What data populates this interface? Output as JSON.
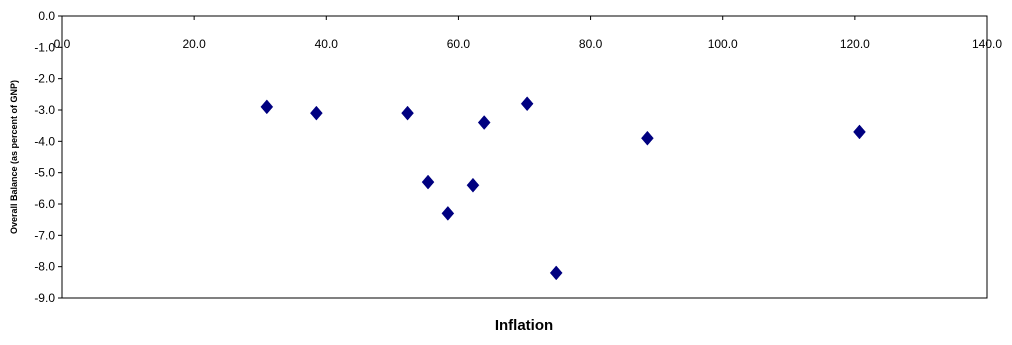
{
  "chart_data": {
    "type": "scatter",
    "title": "",
    "xlabel": "Inflation",
    "ylabel": "Overall Balance (as percent of GNP)",
    "xlim": [
      0,
      140
    ],
    "ylim": [
      -9,
      0
    ],
    "x_ticks": [
      "0.0",
      "20.0",
      "40.0",
      "60.0",
      "80.0",
      "100.0",
      "120.0",
      "140.0"
    ],
    "y_ticks": [
      "0.0",
      "-1.0",
      "-2.0",
      "-3.0",
      "-4.0",
      "-5.0",
      "-6.0",
      "-7.0",
      "-8.0",
      "-9.0"
    ],
    "x_axis_position": "top",
    "grid": false,
    "legend": "none",
    "marker": "diamond",
    "marker_color": "#000080",
    "series": [
      {
        "points": [
          {
            "x": 31.0,
            "y": -2.9
          },
          {
            "x": 38.5,
            "y": -3.1
          },
          {
            "x": 52.3,
            "y": -3.1
          },
          {
            "x": 55.4,
            "y": -5.3
          },
          {
            "x": 58.4,
            "y": -6.3
          },
          {
            "x": 62.2,
            "y": -5.4
          },
          {
            "x": 63.9,
            "y": -3.4
          },
          {
            "x": 70.4,
            "y": -2.8
          },
          {
            "x": 74.8,
            "y": -8.2
          },
          {
            "x": 88.6,
            "y": -3.9
          },
          {
            "x": 120.7,
            "y": -3.7
          }
        ]
      }
    ]
  }
}
